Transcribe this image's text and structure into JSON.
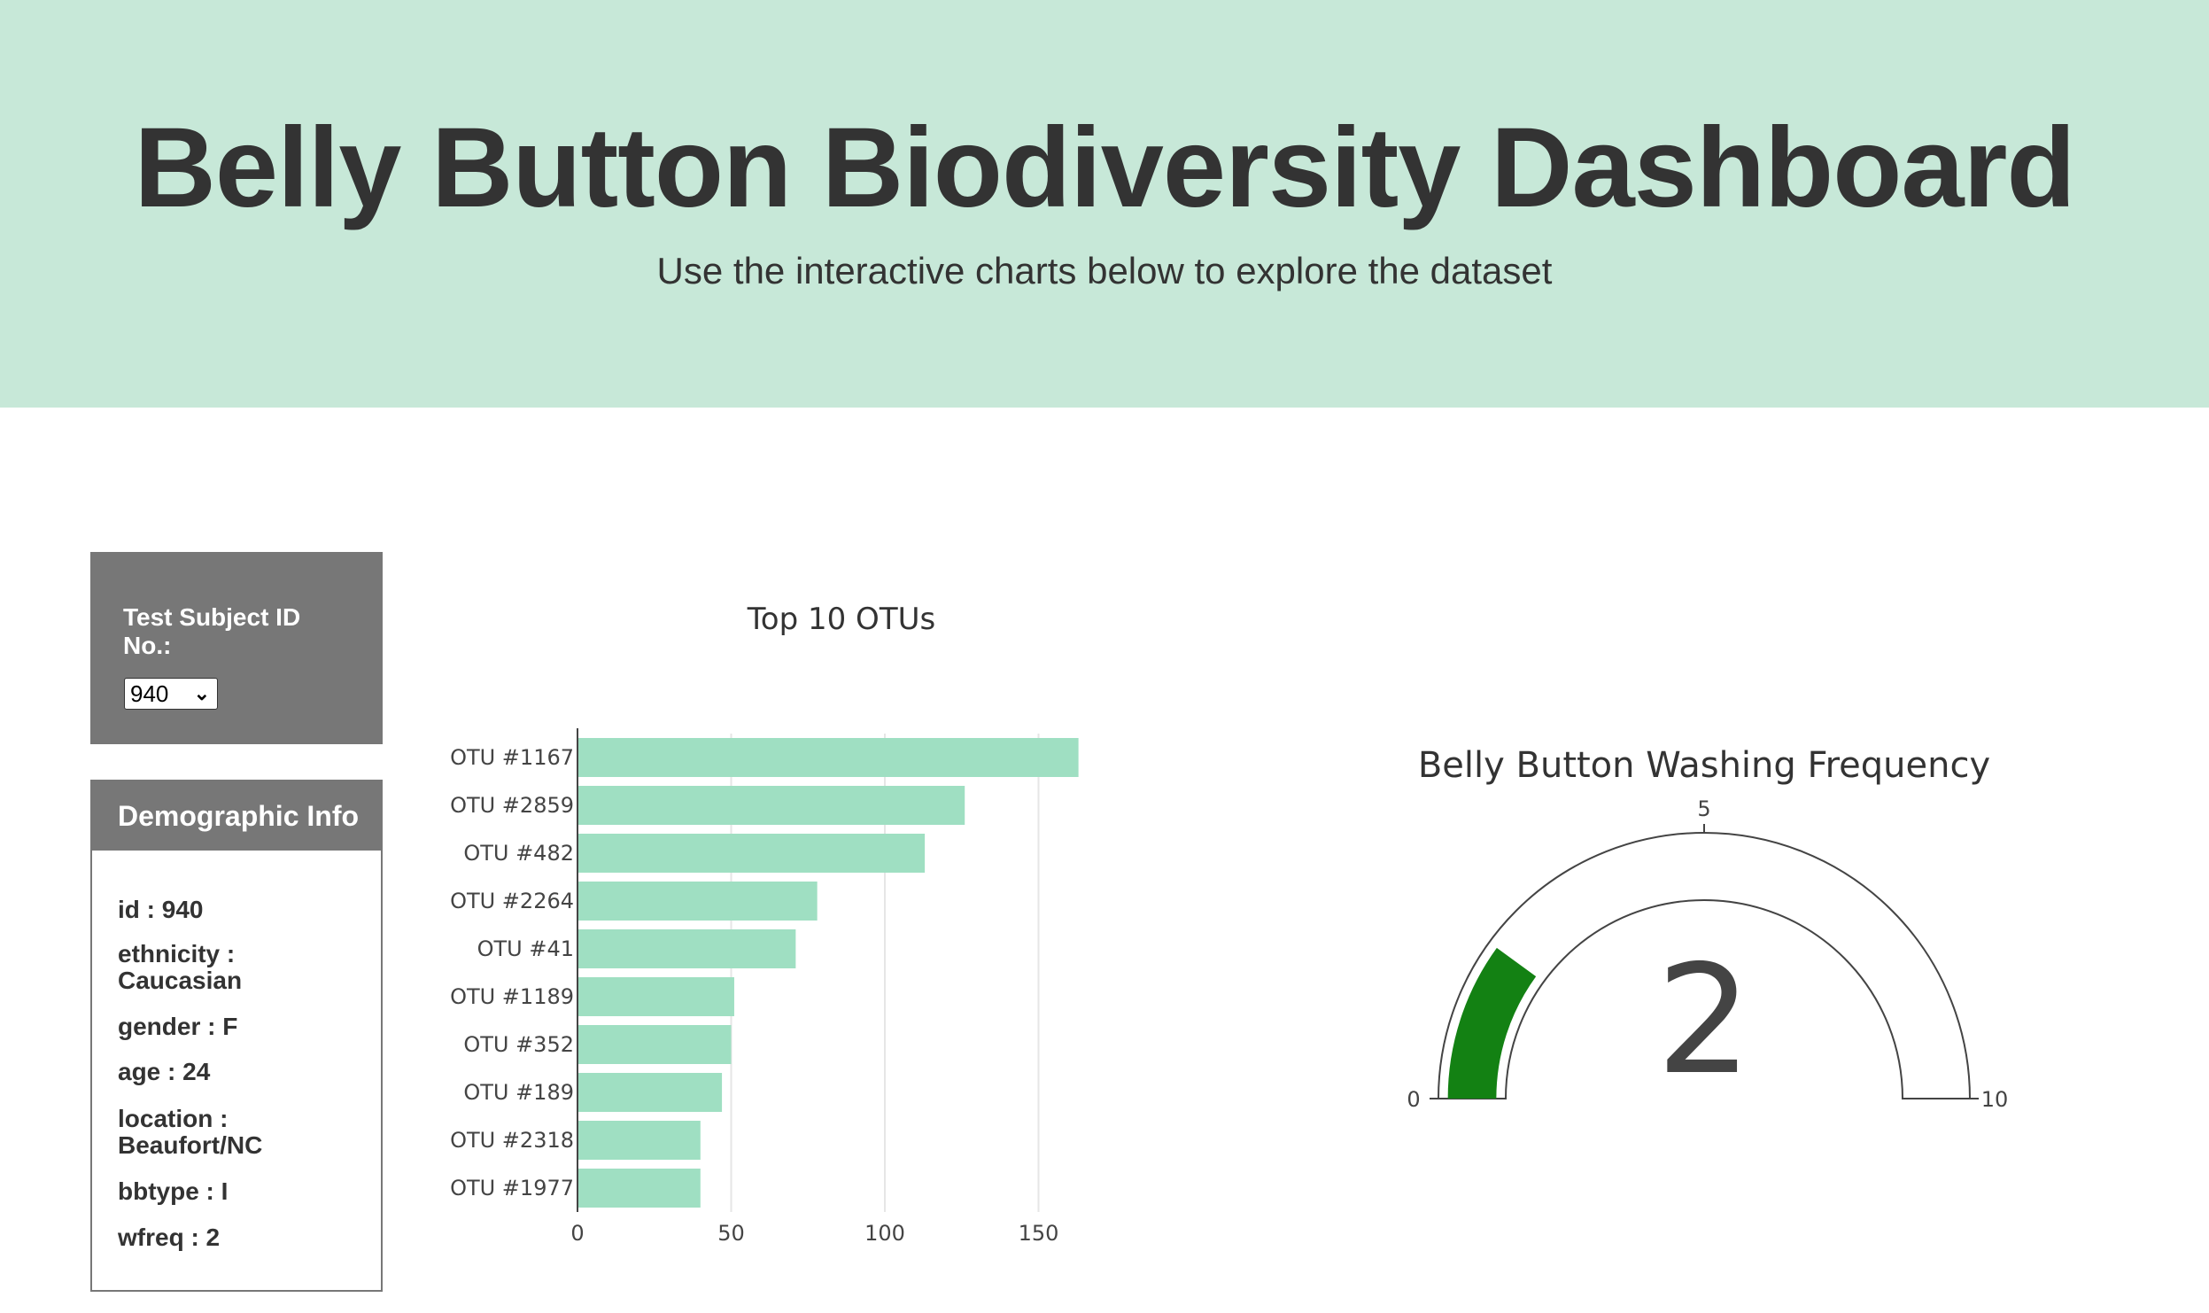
{
  "header": {
    "title": "Belly Button Biodiversity Dashboard",
    "subtitle": "Use the interactive charts below to explore the dataset"
  },
  "selector": {
    "label": "Test Subject ID No.:",
    "selected": "940"
  },
  "demographics": {
    "heading": "Demographic Info",
    "rows": [
      "id : 940",
      "ethnicity : Caucasian",
      "gender : F",
      "age : 24",
      "location : Beaufort/NC",
      "bbtype : I",
      "wfreq : 2"
    ]
  },
  "colors": {
    "banner": "#c7e8d8",
    "bar": "#9fdfc2",
    "gauge_fill": "#138113",
    "panel": "#777777"
  },
  "chart_data": [
    {
      "type": "bar",
      "orientation": "horizontal",
      "title": "Top 10 OTUs",
      "categories": [
        "OTU #1167",
        "OTU #2859",
        "OTU #482",
        "OTU #2264",
        "OTU #41",
        "OTU #1189",
        "OTU #352",
        "OTU #189",
        "OTU #2318",
        "OTU #1977"
      ],
      "values": [
        163,
        126,
        113,
        78,
        71,
        51,
        50,
        47,
        40,
        40
      ],
      "xlim": [
        0,
        165
      ],
      "xticks": [
        0,
        50,
        100,
        150
      ],
      "xtick_labels": [
        "0",
        "50",
        "100",
        "150"
      ],
      "grid": true
    },
    {
      "type": "gauge",
      "title": "Belly Button Washing Frequency",
      "value": 2,
      "value_label": "2",
      "range": [
        0,
        10
      ],
      "tick_labels": [
        "0",
        "5",
        "10"
      ],
      "ticks": [
        0,
        5,
        10
      ]
    }
  ]
}
